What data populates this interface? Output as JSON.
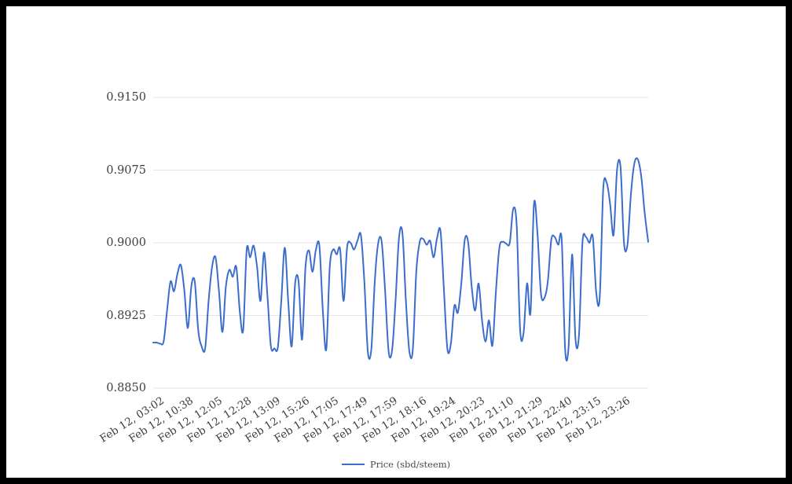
{
  "chart_data": {
    "type": "line",
    "title": "",
    "legend_position": "bottom",
    "grid": true,
    "line_color": "#3d6dcc",
    "grid_color": "#e3e3e3",
    "ylim": [
      0.885,
      0.915
    ],
    "y_ticks": [
      0.915,
      0.9075,
      0.9,
      0.8925,
      0.885
    ],
    "y_tick_labels": [
      "0.9150",
      "0.9075",
      "0.9000",
      "0.8925",
      "0.8850"
    ],
    "x_tick_labels": [
      "Feb 12, 03:02",
      "Feb 12, 10:38",
      "Feb 12, 12:05",
      "Feb 12, 12:28",
      "Feb 12, 13:09",
      "Feb 12, 15:26",
      "Feb 12, 17:05",
      "Feb 12, 17:49",
      "Feb 12, 17:59",
      "Feb 12, 18:16",
      "Feb 12, 19:24",
      "Feb 12, 20:23",
      "Feb 12, 21:10",
      "Feb 12, 21:29",
      "Feb 12, 22:40",
      "Feb 12, 23:15",
      "Feb 12, 23:26"
    ],
    "series": [
      {
        "name": "Price (sbd/steem)",
        "values": [
          0.8897,
          0.8897,
          0.8896,
          0.8898,
          0.893,
          0.896,
          0.895,
          0.8968,
          0.8977,
          0.895,
          0.8912,
          0.8955,
          0.896,
          0.891,
          0.8893,
          0.8891,
          0.894,
          0.8975,
          0.8985,
          0.895,
          0.8908,
          0.8955,
          0.8972,
          0.8965,
          0.8975,
          0.893,
          0.891,
          0.8993,
          0.8985,
          0.8997,
          0.8975,
          0.894,
          0.899,
          0.8945,
          0.8893,
          0.8891,
          0.8892,
          0.894,
          0.8995,
          0.894,
          0.8893,
          0.8958,
          0.896,
          0.89,
          0.8975,
          0.8992,
          0.897,
          0.8993,
          0.8997,
          0.893,
          0.889,
          0.8975,
          0.8993,
          0.8988,
          0.8993,
          0.894,
          0.8995,
          0.9,
          0.8993,
          0.9002,
          0.9008,
          0.896,
          0.8888,
          0.889,
          0.896,
          0.9,
          0.9001,
          0.895,
          0.8888,
          0.8889,
          0.894,
          0.9005,
          0.901,
          0.894,
          0.8888,
          0.889,
          0.897,
          0.9001,
          0.9004,
          0.8998,
          0.9002,
          0.8985,
          0.9005,
          0.9012,
          0.895,
          0.889,
          0.8896,
          0.8935,
          0.8928,
          0.8958,
          0.9003,
          0.9,
          0.8955,
          0.893,
          0.8958,
          0.892,
          0.8898,
          0.892,
          0.8894,
          0.895,
          0.8995,
          0.9001,
          0.8999,
          0.9,
          0.9035,
          0.9018,
          0.891,
          0.8907,
          0.8958,
          0.8928,
          0.904,
          0.901,
          0.8948,
          0.8943,
          0.896,
          0.9003,
          0.9006,
          0.8998,
          0.9003,
          0.889,
          0.8893,
          0.8988,
          0.89,
          0.8905,
          0.9,
          0.9006,
          0.9,
          0.9006,
          0.8948,
          0.8944,
          0.9055,
          0.9062,
          0.904,
          0.9008,
          0.9075,
          0.9078,
          0.9,
          0.8998,
          0.905,
          0.9082,
          0.9086,
          0.9068,
          0.903,
          0.9001
        ]
      }
    ]
  }
}
